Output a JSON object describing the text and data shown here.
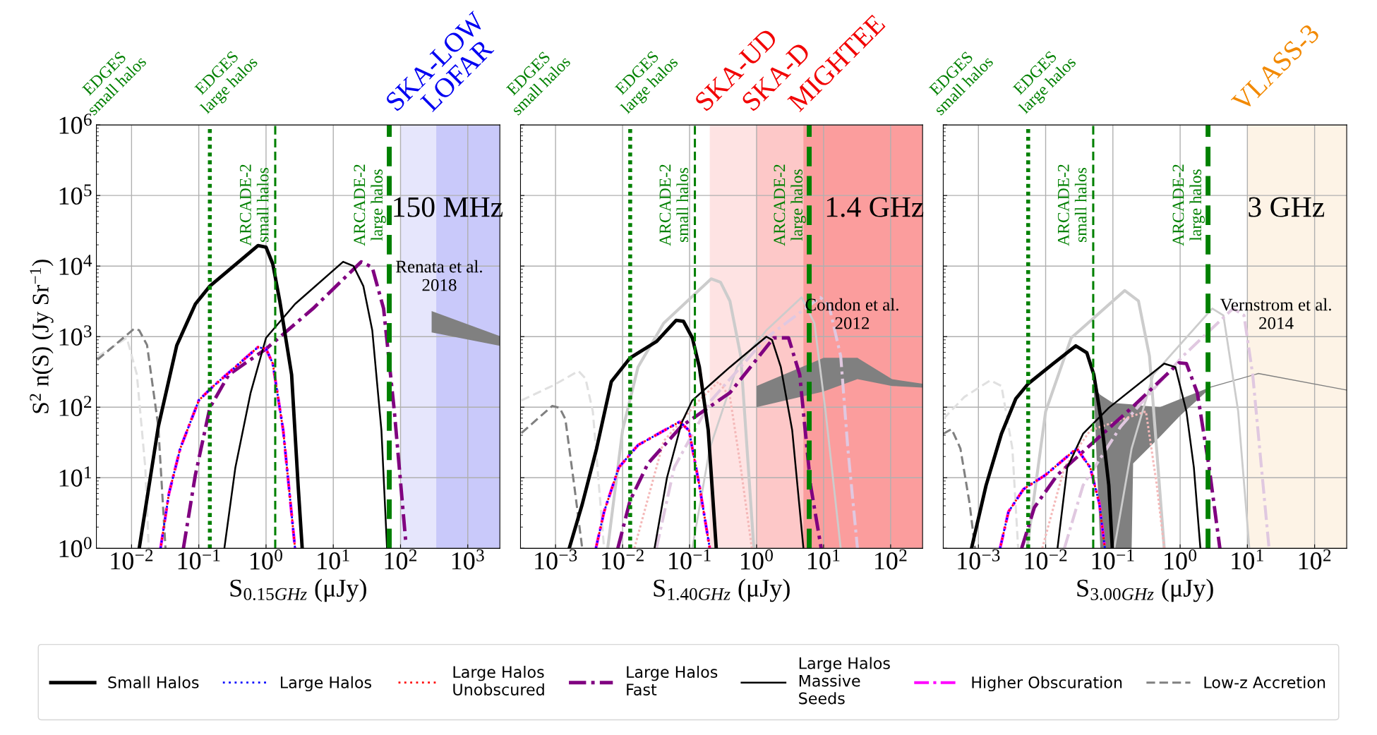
{
  "chart_data": [
    {
      "type": "line",
      "xlabel": "S$_{0.15GHz}$ (μJy)",
      "ylabel": "S$^{2}$ n(S) (Jy Sr$^{−1}$)",
      "log": "xy",
      "grid": true,
      "legend": "bottom",
      "xlim": [
        0.003,
        3000
      ],
      "ylim": [
        1,
        1000000
      ],
      "xticks": [
        {
          "value": 0.01,
          "label": "10$^{−2}$"
        },
        {
          "value": 0.1,
          "label": "10$^{−1}$"
        },
        {
          "value": 1,
          "label": "10$^{0}$"
        },
        {
          "value": 10,
          "label": "10$^{1}$"
        },
        {
          "value": 100,
          "label": "10$^{2}$"
        },
        {
          "value": 1000,
          "label": "10$^{3}$"
        }
      ],
      "yticks": [
        {
          "value": 1,
          "label": "10$^{0}$"
        },
        {
          "value": 10,
          "label": "10$^{1}$"
        },
        {
          "value": 100,
          "label": "10$^{2}$"
        },
        {
          "value": 1000,
          "label": "10$^{3}$"
        },
        {
          "value": 10000,
          "label": "10$^{4}$"
        },
        {
          "value": 100000,
          "label": "10$^{5}$"
        },
        {
          "value": 1000000,
          "label": "10$^{6}$"
        }
      ],
      "series": [
        {
          "name": "Small Halos",
          "type": "line",
          "line_style": "solid",
          "color": "#000000",
          "x": [
            0.013,
            0.025,
            0.047,
            0.089,
            0.146,
            0.76,
            1.0,
            1.26,
            1.6,
            2.4,
            3.0,
            3.45
          ],
          "values": [
            1,
            53,
            750,
            2900,
            5200,
            19500,
            18500,
            10700,
            3200,
            290,
            7.8,
            1
          ]
        },
        {
          "name": "Large Halos",
          "type": "line",
          "line_style": "dotted",
          "color": "#0000ff",
          "x": [
            0.027,
            0.036,
            0.053,
            0.1,
            0.166,
            0.76,
            1.0,
            1.26,
            1.8,
            2.7
          ],
          "values": [
            1,
            6,
            26,
            125,
            200,
            710,
            670,
            415,
            47,
            1
          ]
        },
        {
          "name": "Large Halos\nUnobscured",
          "type": "line",
          "line_style": "dotted",
          "color": "#ff0000",
          "x": [
            0.027,
            0.036,
            0.053,
            0.1,
            0.166,
            0.76,
            1.0,
            1.26,
            1.8,
            2.7
          ],
          "values": [
            1,
            6,
            26,
            125,
            200,
            710,
            670,
            415,
            47,
            1
          ]
        },
        {
          "name": "Large Halos\nFast",
          "type": "line",
          "line_style": "dashdot",
          "color": "#800080",
          "x": [
            0.059,
            0.089,
            0.146,
            0.28,
            1.0,
            5.0,
            26,
            38,
            56,
            81,
            120
          ],
          "values": [
            1,
            11,
            98,
            290,
            670,
            2500,
            11500,
            9600,
            2500,
            87,
            1.2
          ]
        },
        {
          "name": "Large Halos\nMassive\nSeeds",
          "type": "line",
          "line_style": "solid",
          "color": "#000000",
          "x": [
            0.24,
            0.35,
            0.59,
            1.0,
            2.7,
            14,
            20,
            28,
            38,
            52,
            63
          ],
          "values": [
            1,
            14,
            160,
            960,
            2900,
            11500,
            10000,
            5200,
            1230,
            47,
            1
          ]
        },
        {
          "name": "Higher Obscuration",
          "type": "line",
          "line_style": "dashdot",
          "color": "#ff00ff",
          "x": [
            0.027,
            0.036,
            0.053,
            0.1,
            0.166,
            0.76,
            1.0,
            1.26,
            1.8,
            2.7
          ],
          "values": [
            1,
            6,
            26,
            125,
            200,
            710,
            670,
            415,
            47,
            1
          ]
        },
        {
          "name": "Low-z Accretion",
          "type": "line",
          "line_style": "dashed",
          "color": "#808080",
          "x": [
            0.0031,
            0.011,
            0.013,
            0.017,
            0.025,
            0.032
          ],
          "values": [
            470,
            1300,
            1230,
            760,
            53,
            1
          ]
        },
        {
          "type": "area",
          "color": "#808080",
          "x": [
            290,
            3000
          ],
          "values": [
            null,
            null
          ],
          "upper": [
            2300,
            1020
          ],
          "lower": [
            1150,
            740
          ]
        },
        {
          "type": "line",
          "line_style": "dashed",
          "color": "#e0e0e0",
          "x": [
            0.0031,
            0.0085,
            0.012,
            0.016,
            0.018
          ],
          "values": [
            520,
            960,
            290,
            14,
            1
          ]
        }
      ],
      "ref_lines": [
        {
          "axis": "x",
          "value": 0.146,
          "label": "EDGES\nlarge halos",
          "color": "#008000",
          "line_style": "dotted"
        },
        {
          "axis": "x",
          "value": 1.37,
          "label": "ARCADE-2\nsmall halos",
          "color": "#008000",
          "line_style": "dashed"
        },
        {
          "axis": "x",
          "value": 68,
          "label": "ARCADE-2\nlarge halos",
          "color": "#008000",
          "line_style": "dashed"
        }
      ],
      "bands": [
        {
          "axis": "x",
          "from": 100,
          "to": 3000,
          "label": "SKA-LOW",
          "color": "#e6e6fc"
        },
        {
          "axis": "x",
          "from": 340,
          "to": 3000,
          "label": "LOFAR",
          "color": "#c9c9fa"
        }
      ],
      "annotations": [
        "EDGES\nsmall halos",
        "150 MHz",
        "Renata et al.\n2018"
      ]
    },
    {
      "type": "line",
      "xlabel": "S$_{1.40GHz}$ (μJy)",
      "log": "xy",
      "grid": true,
      "tick_labels": "x",
      "xlim": [
        0.0003,
        300
      ],
      "ylim": [
        1,
        1000000
      ],
      "xticks": [
        {
          "value": 0.001,
          "label": "10$^{−3}$"
        },
        {
          "value": 0.01,
          "label": "10$^{−2}$"
        },
        {
          "value": 0.1,
          "label": "10$^{−1}$"
        },
        {
          "value": 1,
          "label": "10$^{0}$"
        },
        {
          "value": 10,
          "label": "10$^{1}$"
        },
        {
          "value": 100,
          "label": "10$^{2}$"
        }
      ],
      "yticks": [
        {
          "value": 1,
          "label": null
        },
        {
          "value": 10,
          "label": null
        },
        {
          "value": 100,
          "label": null
        },
        {
          "value": 1000,
          "label": null
        },
        {
          "value": 10000,
          "label": null
        },
        {
          "value": 100000,
          "label": null
        },
        {
          "value": 1000000,
          "label": null
        }
      ],
      "series": [
        {
          "type": "line",
          "line_style": "solid",
          "color": "#000000",
          "x": [
            0.0016,
            0.0025,
            0.0041,
            0.0068,
            0.013,
            0.032,
            0.063,
            0.081,
            0.11,
            0.14,
            0.19,
            0.25
          ],
          "values": [
            1,
            4.2,
            26,
            230,
            500,
            850,
            1700,
            1650,
            960,
            370,
            47,
            1
          ]
        },
        {
          "type": "line",
          "line_style": "dotted",
          "color": "#0000ff",
          "x": [
            0.004,
            0.0053,
            0.0088,
            0.017,
            0.071,
            0.098,
            0.14,
            0.2
          ],
          "values": [
            1,
            3.3,
            14,
            29,
            62,
            47,
            7.8,
            1
          ]
        },
        {
          "type": "line",
          "line_style": "dotted",
          "color": "#ff0000",
          "x": [
            0.004,
            0.0053,
            0.0088,
            0.017,
            0.071,
            0.098,
            0.14,
            0.2
          ],
          "values": [
            1,
            3.3,
            14,
            29,
            62,
            47,
            7.8,
            1
          ]
        },
        {
          "type": "line",
          "line_style": "dashdot",
          "color": "#800080",
          "x": [
            0.0085,
            0.013,
            0.024,
            0.076,
            0.4,
            1.8,
            3.0,
            4.4,
            6.4,
            9.2
          ],
          "values": [
            1,
            4.8,
            16,
            54,
            160,
            960,
            960,
            290,
            7.8,
            1
          ]
        },
        {
          "type": "line",
          "line_style": "solid",
          "color": "#000000",
          "x": [
            0.03,
            0.046,
            0.076,
            0.11,
            0.4,
            1.4,
            1.7,
            2.3,
            3.4,
            5.0
          ],
          "values": [
            1,
            10,
            60,
            125,
            370,
            1000,
            900,
            370,
            47,
            1
          ]
        },
        {
          "type": "line",
          "line_style": "dashdot",
          "color": "#ff00ff",
          "x": [
            0.004,
            0.0053,
            0.0088,
            0.017,
            0.071,
            0.098,
            0.14,
            0.2
          ],
          "values": [
            1,
            3.3,
            14,
            29,
            62,
            47,
            7.8,
            1
          ]
        },
        {
          "type": "line",
          "line_style": "dashed",
          "color": "#808080",
          "x": [
            0.00031,
            0.00089,
            0.00115,
            0.0014,
            0.0019,
            0.0025
          ],
          "values": [
            43,
            104,
            98,
            68,
            7.8,
            1
          ]
        },
        {
          "type": "area",
          "color": "#808080",
          "x": [
            1,
            10,
            32,
            105,
            300
          ],
          "values": [
            null,
            null,
            null,
            null,
            null
          ],
          "upper": [
            200,
            500,
            500,
            250,
            215
          ],
          "lower": [
            100,
            167,
            250,
            200,
            190
          ]
        },
        {
          "type": "line",
          "line_style": "solid",
          "color": "#cccccc",
          "x": [
            0.006,
            0.01,
            0.017,
            0.041,
            0.21,
            0.29,
            0.4,
            0.58,
            0.91
          ],
          "values": [
            1,
            47,
            370,
            1550,
            6600,
            5900,
            3200,
            530,
            1
          ]
        },
        {
          "type": "line",
          "line_style": "solid",
          "color": "#cccccc",
          "x": [
            0.11,
            0.2,
            0.51,
            1.4,
            4.7,
            7.3,
            10.7,
            18
          ],
          "values": [
            1,
            26,
            370,
            1230,
            3600,
            1550,
            87,
            1
          ]
        },
        {
          "type": "line",
          "line_style": "dashdot",
          "color": "#e0c8e0",
          "x": [
            0.032,
            0.059,
            0.21,
            1.4,
            8.9,
            12,
            18,
            23,
            32
          ],
          "values": [
            1,
            14,
            125,
            960,
            3600,
            2800,
            530,
            26,
            1
          ]
        },
        {
          "type": "line",
          "line_style": "dashed",
          "color": "#e0e0e0",
          "x": [
            0.00031,
            0.00089,
            0.0022,
            0.0028,
            0.0036,
            0.0053
          ],
          "values": [
            125,
            200,
            325,
            255,
            87,
            1
          ]
        },
        {
          "type": "line",
          "line_style": "dotted",
          "color": "#f4b8b8",
          "x": [
            0.015,
            0.041,
            0.14,
            0.27,
            0.4,
            0.58,
            0.85
          ],
          "values": [
            1,
            33,
            125,
            230,
            140,
            14,
            1
          ]
        }
      ],
      "ref_lines": [
        {
          "axis": "x",
          "value": 0.013,
          "label": "EDGES\nlarge halos",
          "color": "#008000",
          "line_style": "dotted"
        },
        {
          "axis": "x",
          "value": 0.12,
          "label": "ARCADE-2\nsmall halos",
          "color": "#008000",
          "line_style": "dashed"
        },
        {
          "axis": "x",
          "value": 6.1,
          "label": "ARCADE-2\nlarge halos",
          "color": "#008000",
          "line_style": "dashed"
        }
      ],
      "bands": [
        {
          "axis": "x",
          "from": 0.2,
          "to": 300,
          "label": "SKA-UD",
          "color": "#fee3e3"
        },
        {
          "axis": "x",
          "from": 1,
          "to": 300,
          "label": "SKA-D",
          "color": "#fdc8c8"
        },
        {
          "axis": "x",
          "from": 5,
          "to": 300,
          "label": "MIGHTEE",
          "color": "#fb9d9d"
        }
      ],
      "annotations": [
        "EDGES\nsmall halos",
        "1.4 GHz",
        "Condon et al.\n2012"
      ]
    },
    {
      "type": "line",
      "xlabel": "S$_{3.00GHz}$ (μJy)",
      "log": "xy",
      "grid": true,
      "tick_labels": "x",
      "xlim": [
        0.0003,
        300
      ],
      "ylim": [
        1,
        1000000
      ],
      "xticks": [
        {
          "value": 0.001,
          "label": "10$^{−3}$"
        },
        {
          "value": 0.01,
          "label": "10$^{−2}$"
        },
        {
          "value": 0.1,
          "label": "10$^{−1}$"
        },
        {
          "value": 1,
          "label": "10$^{0}$"
        },
        {
          "value": 10,
          "label": "10$^{1}$"
        },
        {
          "value": 100,
          "label": "10$^{2}$"
        }
      ],
      "yticks": [
        {
          "value": 1,
          "label": null
        },
        {
          "value": 10,
          "label": null
        },
        {
          "value": 100,
          "label": null
        },
        {
          "value": 1000,
          "label": null
        },
        {
          "value": 10000,
          "label": null
        },
        {
          "value": 100000,
          "label": null
        },
        {
          "value": 1000000,
          "label": null
        }
      ],
      "series": [
        {
          "type": "line",
          "line_style": "solid",
          "color": "#000000",
          "x": [
            0.00079,
            0.0013,
            0.0022,
            0.0036,
            0.0055,
            0.013,
            0.028,
            0.041,
            0.052,
            0.068,
            0.087,
            0.098
          ],
          "values": [
            1,
            7.8,
            42,
            132,
            215,
            415,
            740,
            590,
            290,
            60,
            7.8,
            1
          ]
        },
        {
          "type": "line",
          "line_style": "dotted",
          "color": "#0000ff",
          "x": [
            0.0021,
            0.0028,
            0.0047,
            0.01,
            0.029,
            0.046,
            0.063,
            0.076
          ],
          "values": [
            1,
            3.3,
            6.9,
            11,
            26,
            14,
            4.3,
            1
          ]
        },
        {
          "type": "line",
          "line_style": "dotted",
          "color": "#ff0000",
          "x": [
            0.0021,
            0.0028,
            0.0047,
            0.01,
            0.029,
            0.046,
            0.063,
            0.076
          ],
          "values": [
            1,
            3.3,
            6.9,
            11,
            26,
            14,
            4.3,
            1
          ]
        },
        {
          "type": "line",
          "line_style": "dashdot",
          "color": "#800080",
          "x": [
            0.0044,
            0.0068,
            0.015,
            0.046,
            0.19,
            0.96,
            1.24,
            1.8,
            2.7,
            3.9
          ],
          "values": [
            1,
            3.8,
            11,
            29,
            98,
            425,
            415,
            160,
            14,
            1
          ]
        },
        {
          "type": "line",
          "line_style": "solid",
          "color": "#000000",
          "x": [
            0.015,
            0.021,
            0.036,
            0.087,
            0.58,
            0.85,
            1.24,
            1.6,
            2.0
          ],
          "values": [
            1,
            14,
            42,
            98,
            415,
            370,
            87,
            14,
            1
          ]
        },
        {
          "type": "line",
          "line_style": "dashdot",
          "color": "#ff00ff",
          "x": [
            0.0021,
            0.0028,
            0.0047,
            0.01,
            0.029,
            0.046,
            0.063,
            0.076
          ],
          "values": [
            1,
            3.3,
            6.9,
            11,
            26,
            14,
            4.3,
            1
          ]
        },
        {
          "type": "line",
          "line_style": "dashed",
          "color": "#808080",
          "x": [
            0.0003,
            0.0004,
            0.00054,
            0.00074,
            0.00089
          ],
          "values": [
            42,
            49,
            26,
            4.3,
            1
          ]
        },
        {
          "type": "area",
          "color": "#808080",
          "x": [
            0.052,
            0.065,
            0.1,
            0.19,
            0.2,
            0.5,
            1.0,
            2.7
          ],
          "values": [
            null,
            null,
            null,
            null,
            null,
            null,
            null,
            null
          ],
          "upper": [
            190,
            150,
            115,
            110,
            108,
            100,
            130,
            190
          ],
          "lower": [
            180,
            1,
            1,
            1,
            16,
            38,
            76,
            180
          ]
        },
        {
          "type": "line",
          "line_style": "solid",
          "color": "#808080",
          "x": [
            2.7,
            14.6,
            300
          ],
          "values": [
            190,
            300,
            175
          ]
        },
        {
          "type": "line",
          "line_style": "solid",
          "color": "#cccccc",
          "x": [
            0.0053,
            0.01,
            0.024,
            0.15,
            0.24,
            0.35,
            0.58
          ],
          "values": [
            1,
            87,
            960,
            4500,
            3200,
            530,
            1
          ]
        },
        {
          "type": "line",
          "line_style": "solid",
          "color": "#cccccc",
          "x": [
            0.105,
            0.19,
            0.4,
            3.0,
            4.4,
            7.3,
            10.7
          ],
          "values": [
            1,
            26,
            290,
            2500,
            2000,
            87,
            1
          ]
        },
        {
          "type": "line",
          "line_style": "dashdot",
          "color": "#e0c8e0",
          "x": [
            0.019,
            0.036,
            0.13,
            1.1,
            6.1,
            8.9,
            12,
            21
          ],
          "values": [
            1,
            7.8,
            53,
            530,
            2500,
            2000,
            290,
            1
          ]
        },
        {
          "type": "line",
          "line_style": "dashed",
          "color": "#e0e0e0",
          "x": [
            0.0003,
            0.00062,
            0.0015,
            0.0022,
            0.0032,
            0.0039
          ],
          "values": [
            68,
            140,
            240,
            200,
            26,
            1
          ]
        },
        {
          "type": "line",
          "line_style": "dotted",
          "color": "#f4b8b8",
          "x": [
            0.0089,
            0.019,
            0.046,
            0.31,
            0.45,
            0.58
          ],
          "values": [
            1,
            14,
            47,
            87,
            7.8,
            1
          ]
        }
      ],
      "ref_lines": [
        {
          "axis": "x",
          "value": 0.0055,
          "label": "EDGES\nlarge halos",
          "color": "#008000",
          "line_style": "dotted"
        },
        {
          "axis": "x",
          "value": 0.051,
          "label": "ARCADE-2\nsmall halos",
          "color": "#008000",
          "line_style": "dashed"
        },
        {
          "axis": "x",
          "value": 2.6,
          "label": "ARCADE-2\nlarge halos",
          "color": "#008000",
          "line_style": "dashed"
        }
      ],
      "bands": [
        {
          "axis": "x",
          "from": 10,
          "to": 300,
          "label": "VLASS-3",
          "color": "#fdf3e6"
        }
      ],
      "annotations": [
        "EDGES\nsmall halos",
        "3 GHz",
        "Vernstrom et al.\n2014"
      ]
    }
  ]
}
